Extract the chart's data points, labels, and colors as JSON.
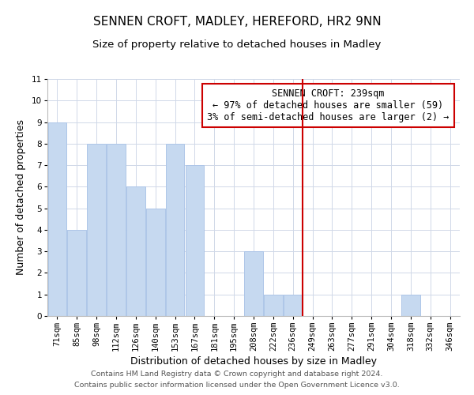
{
  "title": "SENNEN CROFT, MADLEY, HEREFORD, HR2 9NN",
  "subtitle": "Size of property relative to detached houses in Madley",
  "xlabel": "Distribution of detached houses by size in Madley",
  "ylabel": "Number of detached properties",
  "bar_labels": [
    "71sqm",
    "85sqm",
    "98sqm",
    "112sqm",
    "126sqm",
    "140sqm",
    "153sqm",
    "167sqm",
    "181sqm",
    "195sqm",
    "208sqm",
    "222sqm",
    "236sqm",
    "249sqm",
    "263sqm",
    "277sqm",
    "291sqm",
    "304sqm",
    "318sqm",
    "332sqm",
    "346sqm"
  ],
  "bar_values": [
    9,
    4,
    8,
    8,
    6,
    5,
    8,
    7,
    0,
    0,
    3,
    1,
    1,
    0,
    0,
    0,
    0,
    0,
    1,
    0,
    0
  ],
  "bar_color": "#c6d9f0",
  "bar_edge_color": "#aec6e8",
  "vline_x_index": 12.5,
  "vline_color": "#cc0000",
  "annotation_text": "SENNEN CROFT: 239sqm\n← 97% of detached houses are smaller (59)\n3% of semi-detached houses are larger (2) →",
  "annotation_box_color": "#ffffff",
  "annotation_box_edge_color": "#cc0000",
  "ylim": [
    0,
    11
  ],
  "yticks": [
    0,
    1,
    2,
    3,
    4,
    5,
    6,
    7,
    8,
    9,
    10,
    11
  ],
  "grid_color": "#d0d8e8",
  "footer_line1": "Contains HM Land Registry data © Crown copyright and database right 2024.",
  "footer_line2": "Contains public sector information licensed under the Open Government Licence v3.0.",
  "title_fontsize": 11,
  "subtitle_fontsize": 9.5,
  "axis_label_fontsize": 9,
  "tick_fontsize": 7.5,
  "annotation_fontsize": 8.5,
  "footer_fontsize": 6.8,
  "background_color": "#ffffff",
  "plot_bg_color": "#ffffff"
}
